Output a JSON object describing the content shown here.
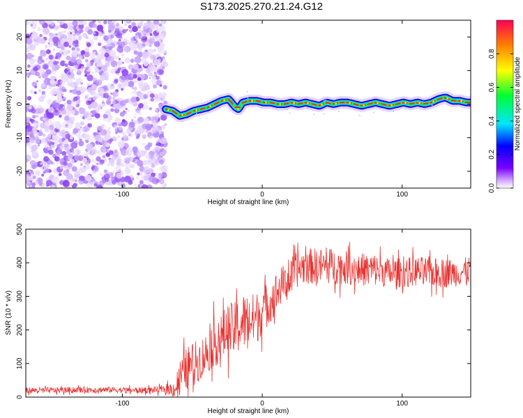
{
  "title": "S173.2025.270.21.24.G12",
  "chart_data": [
    {
      "type": "heatmap",
      "xlabel": "Height of straight line (km)",
      "ylabel": "Frequency (Hz)",
      "xlim": [
        -169,
        149
      ],
      "ylim": [
        -25,
        25
      ],
      "xticks": [
        -100,
        0,
        100
      ],
      "yticks": [
        -20,
        -10,
        0,
        10,
        20
      ],
      "noise_region_x": [
        -169,
        -69
      ],
      "ridge": {
        "x": [
          -69,
          -64,
          -59,
          -54,
          -49,
          -44,
          -39,
          -34,
          -29,
          -24,
          -19,
          -17,
          -14,
          -9,
          -4,
          1,
          6,
          11,
          16,
          21,
          26,
          31,
          36,
          41,
          46,
          51,
          56,
          61,
          66,
          71,
          76,
          81,
          86,
          91,
          96,
          101,
          106,
          111,
          116,
          121,
          126,
          131,
          136,
          141,
          146,
          149
        ],
        "y": [
          -1.5,
          -2,
          -3.5,
          -3,
          -2,
          -1.5,
          -1,
          0,
          1,
          1.5,
          -1,
          -1.5,
          0.5,
          1,
          1,
          0.5,
          0.5,
          0,
          0,
          0.5,
          0,
          0.5,
          0,
          -0.5,
          0.5,
          0,
          0.5,
          0.5,
          0,
          -0.5,
          0,
          0.5,
          0,
          -0.5,
          0,
          0.5,
          0,
          0.5,
          0,
          0.5,
          1.5,
          2,
          1,
          1,
          0.5,
          0.5
        ],
        "amplitude": 0.95
      },
      "colorbar": {
        "label": "Normalized spectral amplitude",
        "range": [
          0,
          1
        ],
        "ticks": [
          "0.0",
          "0.2",
          "0.4",
          "0.6",
          "0.8"
        ],
        "ticks_values": [
          0.0,
          0.2,
          0.4,
          0.6,
          0.8
        ]
      }
    },
    {
      "type": "line",
      "xlabel": "Height of straight line (km)",
      "ylabel": "SNR (10 * v/v)",
      "xlim": [
        -169,
        149
      ],
      "ylim": [
        0,
        500
      ],
      "xticks": [
        -100,
        0,
        100
      ],
      "yticks": [
        0,
        100,
        200,
        300,
        400,
        500
      ],
      "color": "#e8322f",
      "series": [
        {
          "name": "SNR",
          "x": [
            -169,
            -150,
            -130,
            -110,
            -90,
            -70,
            -62,
            -60,
            -55,
            -50,
            -45,
            -40,
            -35,
            -30,
            -25,
            -20,
            -15,
            -10,
            -5,
            0,
            5,
            10,
            15,
            20,
            25,
            30,
            40,
            50,
            60,
            70,
            80,
            90,
            100,
            110,
            120,
            130,
            140,
            149
          ],
          "y": [
            20,
            20,
            22,
            22,
            20,
            22,
            25,
            50,
            80,
            100,
            110,
            130,
            160,
            170,
            200,
            200,
            220,
            230,
            230,
            260,
            280,
            310,
            340,
            350,
            380,
            390,
            390,
            390,
            385,
            380,
            380,
            370,
            370,
            375,
            370,
            370,
            370,
            380
          ],
          "noise_amplitude": [
            10,
            10,
            10,
            10,
            10,
            12,
            30,
            60,
            70,
            70,
            70,
            70,
            80,
            80,
            90,
            90,
            100,
            90,
            90,
            80,
            70,
            70,
            60,
            60,
            60,
            60,
            60,
            60,
            55,
            55,
            55,
            50,
            50,
            50,
            50,
            50,
            45,
            45
          ]
        }
      ]
    }
  ]
}
